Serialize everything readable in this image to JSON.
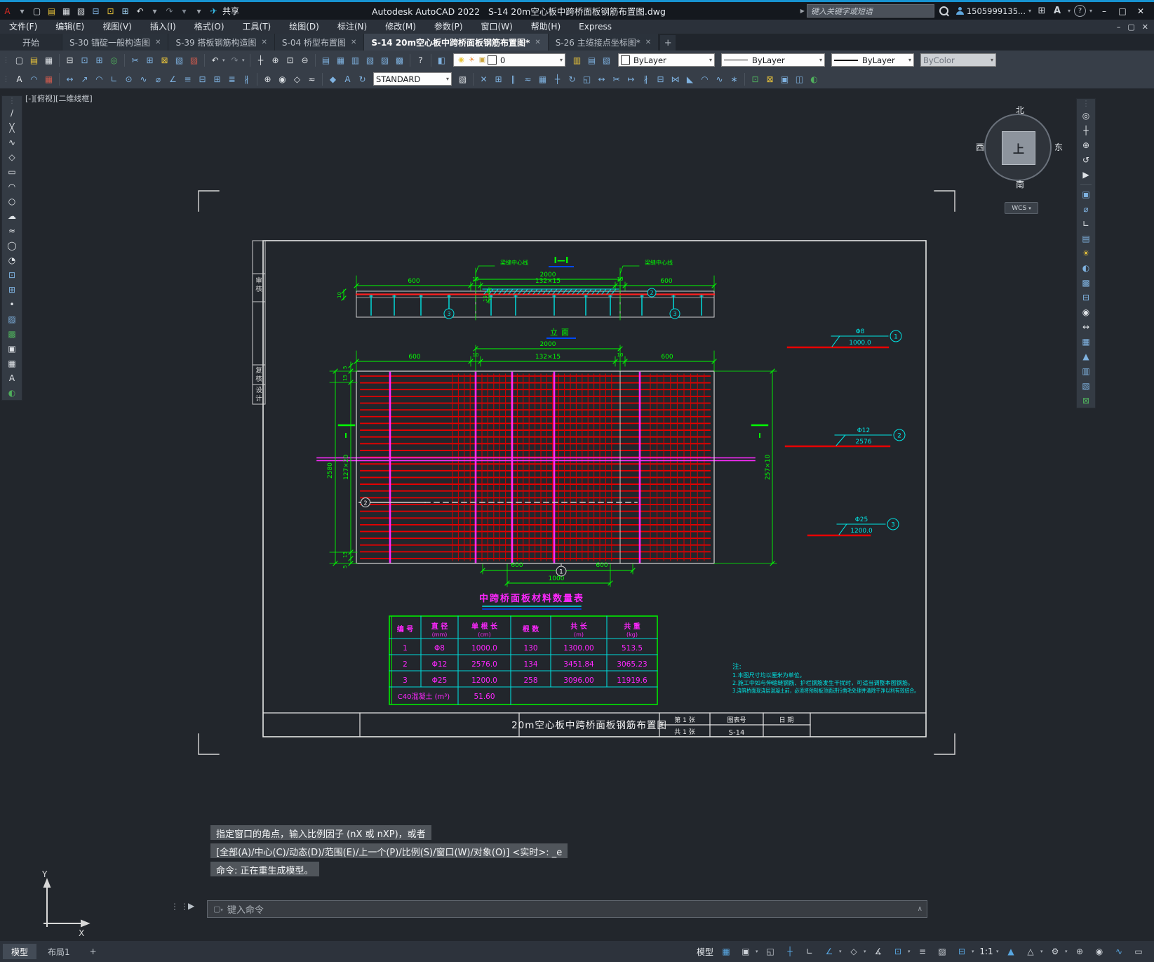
{
  "title_bar": {
    "app_title": "Autodesk AutoCAD 2022",
    "doc_title": "S-14 20m空心板中跨桥面板钢筋布置图.dwg",
    "share_label": "共享",
    "search_placeholder": "键入关键字或短语",
    "account": "1505999135...",
    "quick_icons": [
      {
        "n": "app-logo-icon",
        "g": "A",
        "c": "#d42a22"
      },
      {
        "n": "logo-caret-icon",
        "g": "▾",
        "c": "#9aa0a8"
      },
      {
        "n": "new-file-icon",
        "g": "▢",
        "c": "#dfe3e7"
      },
      {
        "n": "open-file-icon",
        "g": "▤",
        "c": "#e8c33a"
      },
      {
        "n": "save-icon",
        "g": "▦",
        "c": "#dfe3e7"
      },
      {
        "n": "save-as-icon",
        "g": "▧",
        "c": "#dfe3e7"
      },
      {
        "n": "plot-icon",
        "g": "⊟",
        "c": "#7fb2e0"
      },
      {
        "n": "sync-icon",
        "g": "⊡",
        "c": "#e8c33a"
      },
      {
        "n": "print-icon",
        "g": "⊞",
        "c": "#9fd0ef"
      },
      {
        "n": "undo-icon",
        "g": "↶",
        "c": "#dfe3e7"
      },
      {
        "n": "undo-caret-icon",
        "g": "▾",
        "c": "#9aa0a8"
      },
      {
        "n": "redo-icon",
        "g": "↷",
        "c": "#7a828c"
      },
      {
        "n": "redo-caret-icon",
        "g": "▾",
        "c": "#7a828c"
      },
      {
        "n": "more-caret-icon",
        "g": "▾",
        "c": "#9aa0a8"
      },
      {
        "n": "share-plane-icon",
        "g": "✈",
        "c": "#39c2ef"
      }
    ]
  },
  "menu_bar": {
    "items": [
      "文件(F)",
      "编辑(E)",
      "视图(V)",
      "插入(I)",
      "格式(O)",
      "工具(T)",
      "绘图(D)",
      "标注(N)",
      "修改(M)",
      "参数(P)",
      "窗口(W)",
      "帮助(H)",
      "Express"
    ]
  },
  "doc_tabs": {
    "tabs": [
      {
        "label": "开始",
        "closable": false,
        "active": false,
        "start": true
      },
      {
        "label": "S-30 锚碇一般构造图",
        "closable": true,
        "active": false
      },
      {
        "label": "S-39 搭板钢筋构造图",
        "closable": true,
        "active": false
      },
      {
        "label": "S-04 桥型布置图",
        "closable": true,
        "active": false
      },
      {
        "label": "S-14 20m空心板中跨桥面板钢筋布置图*",
        "closable": true,
        "active": true
      },
      {
        "label": "S-26 主缆接点坐标图*",
        "closable": true,
        "active": false
      }
    ],
    "new_tab": "+"
  },
  "toolbar1": {
    "icons": [
      {
        "grip": true
      },
      {
        "n": "new-icon",
        "g": "▢",
        "c": "#dfe3e7"
      },
      {
        "n": "open-icon",
        "g": "▤",
        "c": "#e8c33a"
      },
      {
        "n": "save-icon",
        "g": "▦",
        "c": "#dfe3e7"
      },
      {
        "sep": true
      },
      {
        "n": "plot-icon",
        "g": "⊟",
        "c": "#dfe3e7"
      },
      {
        "n": "preview-icon",
        "g": "⊡",
        "c": "#7fb2e0"
      },
      {
        "n": "publish-icon",
        "g": "⊞",
        "c": "#7fb2e0"
      },
      {
        "n": "transmit-icon",
        "g": "◎",
        "c": "#4fae5c"
      },
      {
        "sep": true
      },
      {
        "n": "cut-icon",
        "g": "✂",
        "c": "#7fb2e0"
      },
      {
        "n": "copy-clip-icon",
        "g": "⊞",
        "c": "#7fb2e0"
      },
      {
        "n": "paste-icon",
        "g": "⊠",
        "c": "#e8c33a"
      },
      {
        "n": "match-properties-icon",
        "g": "▧",
        "c": "#7fb2e0"
      },
      {
        "n": "block-editor-icon",
        "g": "▨",
        "c": "#cf5b4e"
      },
      {
        "sep": true
      },
      {
        "n": "undo-icon",
        "g": "↶",
        "c": "#dfe3e7"
      },
      {
        "caret": true
      },
      {
        "n": "redo-icon",
        "g": "↷",
        "c": "#7a828c"
      },
      {
        "caret": true
      },
      {
        "sep": true
      },
      {
        "n": "pan-icon",
        "g": "┼",
        "c": "#dfe3e7"
      },
      {
        "n": "zoom-realtime-icon",
        "g": "⊕",
        "c": "#dfe3e7"
      },
      {
        "n": "zoom-window-icon",
        "g": "⊡",
        "c": "#dfe3e7"
      },
      {
        "n": "zoom-previous-icon",
        "g": "⊖",
        "c": "#dfe3e7"
      },
      {
        "sep": true
      },
      {
        "n": "properties-icon",
        "g": "▤",
        "c": "#7fb2e0"
      },
      {
        "n": "designcenter-icon",
        "g": "▦",
        "c": "#7fb2e0"
      },
      {
        "n": "tool-palettes-icon",
        "g": "▥",
        "c": "#7fb2e0"
      },
      {
        "n": "sheetset-icon",
        "g": "▧",
        "c": "#7fb2e0"
      },
      {
        "n": "markup-icon",
        "g": "▨",
        "c": "#7fb2e0"
      },
      {
        "n": "quickcalc-icon",
        "g": "▩",
        "c": "#7fb2e0"
      },
      {
        "sep": true
      },
      {
        "n": "help-icon",
        "g": "?",
        "c": "#dfe3e7"
      },
      {
        "sep": true
      },
      {
        "n": "layer-states-icon",
        "g": "◧",
        "c": "#7fb2e0"
      }
    ],
    "layer_combo": {
      "bulb_icon": "◉",
      "sun_icon": "☀",
      "lock_icon": "▣",
      "swatch_icon": "□",
      "layer_name": "0"
    },
    "layer_tool_icons": [
      {
        "n": "layer-properties-icon",
        "g": "▥",
        "c": "#e8c33a"
      },
      {
        "n": "layer-prev-icon",
        "g": "▤",
        "c": "#7fb2e0"
      },
      {
        "n": "layer-isolate-icon",
        "g": "▧",
        "c": "#7fb2e0"
      }
    ],
    "color_value": "ByLayer",
    "linetype_value": "ByLayer",
    "lineweight_value": "ByLayer",
    "plotstyle_value": "ByColor"
  },
  "toolbar2": {
    "icons_left": [
      {
        "grip": true
      },
      {
        "n": "text-style-icon",
        "g": "A",
        "c": "#dfe3e7"
      },
      {
        "n": "dim-style-icon",
        "g": "◠",
        "c": "#7fb2e0"
      },
      {
        "n": "table-style-icon",
        "g": "▦",
        "c": "#cf5b4e"
      },
      {
        "sep": true
      },
      {
        "n": "dim-linear-icon",
        "g": "↔",
        "c": "#7fb2e0"
      },
      {
        "n": "dim-aligned-icon",
        "g": "↗",
        "c": "#7fb2e0"
      },
      {
        "n": "dim-arc-icon",
        "g": "◠",
        "c": "#7fb2e0"
      },
      {
        "n": "dim-ordinate-icon",
        "g": "∟",
        "c": "#7fb2e0"
      },
      {
        "n": "dim-radius-icon",
        "g": "⊙",
        "c": "#7fb2e0"
      },
      {
        "n": "dim-jogged-icon",
        "g": "∿",
        "c": "#7fb2e0"
      },
      {
        "n": "dim-diameter-icon",
        "g": "⌀",
        "c": "#7fb2e0"
      },
      {
        "n": "dim-angular-icon",
        "g": "∠",
        "c": "#7fb2e0"
      },
      {
        "n": "quick-dim-icon",
        "g": "≡",
        "c": "#7fb2e0"
      },
      {
        "n": "dim-baseline-icon",
        "g": "⊟",
        "c": "#7fb2e0"
      },
      {
        "n": "dim-continue-icon",
        "g": "⊞",
        "c": "#7fb2e0"
      },
      {
        "n": "dim-space-icon",
        "g": "≣",
        "c": "#7fb2e0"
      },
      {
        "n": "dim-break-icon",
        "g": "∦",
        "c": "#7fb2e0"
      },
      {
        "sep": true
      },
      {
        "n": "tolerance-icon",
        "g": "⊕",
        "c": "#dfe3e7"
      },
      {
        "n": "center-mark-icon",
        "g": "◉",
        "c": "#dfe3e7"
      },
      {
        "n": "inspection-icon",
        "g": "◇",
        "c": "#dfe3e7"
      },
      {
        "n": "jog-line-icon",
        "g": "≈",
        "c": "#dfe3e7"
      },
      {
        "sep": true
      },
      {
        "n": "dim-edit-icon",
        "g": "◆",
        "c": "#7fb2e0"
      },
      {
        "n": "dim-text-edit-icon",
        "g": "A",
        "c": "#7fb2e0"
      },
      {
        "n": "dim-update-icon",
        "g": "↻",
        "c": "#7fb2e0"
      }
    ],
    "style_value": "STANDARD",
    "icons_right": [
      {
        "n": "dim-style-manager-icon",
        "g": "▧",
        "c": "#dfe3e7"
      },
      {
        "sep": true
      },
      {
        "n": "erase-icon",
        "g": "✕",
        "c": "#7fb2e0"
      },
      {
        "n": "copy-icon",
        "g": "⊞",
        "c": "#7fb2e0"
      },
      {
        "n": "mirror-icon",
        "g": "∥",
        "c": "#7fb2e0"
      },
      {
        "n": "offset-icon",
        "g": "≈",
        "c": "#7fb2e0"
      },
      {
        "n": "array-icon",
        "g": "▦",
        "c": "#7fb2e0"
      },
      {
        "n": "move-icon",
        "g": "┼",
        "c": "#7fb2e0"
      },
      {
        "n": "rotate-icon",
        "g": "↻",
        "c": "#7fb2e0"
      },
      {
        "n": "scale-icon",
        "g": "◱",
        "c": "#7fb2e0"
      },
      {
        "n": "stretch-icon",
        "g": "↔",
        "c": "#7fb2e0"
      },
      {
        "n": "trim-icon",
        "g": "✂",
        "c": "#7fb2e0"
      },
      {
        "n": "extend-icon",
        "g": "↦",
        "c": "#7fb2e0"
      },
      {
        "n": "break-point-icon",
        "g": "∦",
        "c": "#7fb2e0"
      },
      {
        "n": "break-icon",
        "g": "⊟",
        "c": "#7fb2e0"
      },
      {
        "n": "join-icon",
        "g": "⋈",
        "c": "#7fb2e0"
      },
      {
        "n": "chamfer-icon",
        "g": "◣",
        "c": "#7fb2e0"
      },
      {
        "n": "fillet-icon",
        "g": "◠",
        "c": "#7fb2e0"
      },
      {
        "n": "blend-icon",
        "g": "∿",
        "c": "#7fb2e0"
      },
      {
        "n": "explode-icon",
        "g": "∗",
        "c": "#7fb2e0"
      },
      {
        "sep": true
      },
      {
        "n": "group-icon",
        "g": "⊡",
        "c": "#4fae5c"
      },
      {
        "n": "ungroup-icon",
        "g": "⊠",
        "c": "#e8c33a"
      },
      {
        "n": "group-edit-icon",
        "g": "▣",
        "c": "#7fb2e0"
      },
      {
        "n": "selection-icon",
        "g": "◫",
        "c": "#7fb2e0"
      },
      {
        "n": "purge-icon",
        "g": "◐",
        "c": "#4fae5c"
      }
    ]
  },
  "left_toolbar": {
    "icons": [
      {
        "grip": true
      },
      {
        "n": "line-icon",
        "g": "∕",
        "c": "#dfe3e7"
      },
      {
        "n": "construction-line-icon",
        "g": "╳",
        "c": "#dfe3e7"
      },
      {
        "n": "polyline-icon",
        "g": "∿",
        "c": "#dfe3e7"
      },
      {
        "n": "polygon-icon",
        "g": "◇",
        "c": "#dfe3e7"
      },
      {
        "n": "rectangle-icon",
        "g": "▭",
        "c": "#dfe3e7"
      },
      {
        "n": "arc-icon",
        "g": "◠",
        "c": "#dfe3e7"
      },
      {
        "n": "circle-icon",
        "g": "○",
        "c": "#dfe3e7"
      },
      {
        "n": "revision-cloud-icon",
        "g": "☁",
        "c": "#dfe3e7"
      },
      {
        "n": "spline-icon",
        "g": "≈",
        "c": "#dfe3e7"
      },
      {
        "n": "ellipse-icon",
        "g": "◯",
        "c": "#dfe3e7"
      },
      {
        "n": "ellipse-arc-icon",
        "g": "◔",
        "c": "#dfe3e7"
      },
      {
        "n": "insert-block-icon",
        "g": "⊡",
        "c": "#7fb2e0"
      },
      {
        "n": "create-block-icon",
        "g": "⊞",
        "c": "#7fb2e0"
      },
      {
        "n": "point-icon",
        "g": "•",
        "c": "#dfe3e7"
      },
      {
        "n": "hatch-icon",
        "g": "▨",
        "c": "#7fb2e0"
      },
      {
        "n": "gradient-icon",
        "g": "▩",
        "c": "#4fae5c"
      },
      {
        "n": "region-icon",
        "g": "▣",
        "c": "#dfe3e7"
      },
      {
        "n": "table-icon",
        "g": "▦",
        "c": "#dfe3e7"
      },
      {
        "n": "multiline-text-icon",
        "g": "A",
        "c": "#dfe3e7"
      },
      {
        "n": "point-cloud-icon",
        "g": "◐",
        "c": "#4fae5c"
      }
    ]
  },
  "right_toolbar": {
    "icons": [
      {
        "grip": true
      },
      {
        "n": "navigation-wheel-icon",
        "g": "◎",
        "c": "#dfe3e7"
      },
      {
        "n": "pan-icon",
        "g": "┼",
        "c": "#dfe3e7"
      },
      {
        "n": "zoom-extents-icon",
        "g": "⊕",
        "c": "#dfe3e7"
      },
      {
        "n": "orbit-icon",
        "g": "↺",
        "c": "#dfe3e7"
      },
      {
        "n": "showmotion-icon",
        "g": "▶",
        "c": "#dfe3e7"
      },
      {
        "sep": true
      },
      {
        "n": "draw-order-icon",
        "g": "▣",
        "c": "#7fb2e0"
      },
      {
        "n": "measure-icon",
        "g": "⌀",
        "c": "#7fb2e0"
      },
      {
        "n": "ucs-icon",
        "g": "∟",
        "c": "#dfe3e7"
      },
      {
        "n": "named-views-icon",
        "g": "▤",
        "c": "#7fb2e0"
      },
      {
        "n": "lights-icon",
        "g": "☀",
        "c": "#e8c33a"
      },
      {
        "n": "materials-icon",
        "g": "◐",
        "c": "#7fb2e0"
      },
      {
        "n": "render-icon",
        "g": "▩",
        "c": "#7fb2e0"
      },
      {
        "n": "section-plane-icon",
        "g": "⊟",
        "c": "#7fb2e0"
      },
      {
        "n": "camera-icon",
        "g": "◉",
        "c": "#dfe3e7"
      },
      {
        "n": "walk-icon",
        "g": "↔",
        "c": "#dfe3e7"
      },
      {
        "n": "sheet-icon",
        "g": "▦",
        "c": "#7fb2e0"
      },
      {
        "n": "annotate-icon",
        "g": "▲",
        "c": "#7fb2e0"
      },
      {
        "n": "layer-walk-icon",
        "g": "▥",
        "c": "#7fb2e0"
      },
      {
        "n": "properties-icon",
        "g": "▧",
        "c": "#7fb2e0"
      },
      {
        "n": "clean-icon",
        "g": "⊠",
        "c": "#4fae5c"
      }
    ]
  },
  "viewcube": {
    "north": "北",
    "south": "南",
    "west": "西",
    "east": "东",
    "top": "上",
    "wcs_label": "WCS",
    "wcs_caret": "▾"
  },
  "canvas": {
    "viewport_label": "[-][俯视][二维线框]"
  },
  "drawing": {
    "sidebar_labels": [
      "审核",
      "复核",
      "设计"
    ],
    "elevation": {
      "section_title": "I—I",
      "dim_overall": "2000",
      "dim_mid": "132×15",
      "dim_left": "600",
      "dim_right": "600",
      "gap_left": "10",
      "gap_right": "10",
      "thickness": "10",
      "hatch_h": "15",
      "joint_left": "梁缝中心线",
      "joint_right": "梁缝中心线",
      "view_label": "立面",
      "c2": "2",
      "c3": "3"
    },
    "plan": {
      "dim_overall": "2000",
      "dim_mid": "132×15",
      "dim_left": "600",
      "dim_right": "600",
      "gap_left": "10",
      "gap_right": "10",
      "left_total": "2580",
      "left_mid": "127×20",
      "t5": "5",
      "t15": "15",
      "b15": "15",
      "b5": "5",
      "right_dim": "257×10",
      "section_mark": "I",
      "bot_600l": "600",
      "bot_600r": "600",
      "bot_1000": "1000",
      "c1": "1",
      "c2": "2"
    },
    "details": [
      {
        "dia": "Φ8",
        "len": "1000.0",
        "no": "1"
      },
      {
        "dia": "Φ12",
        "len": "2576",
        "no": "2"
      },
      {
        "dia": "Φ25",
        "len": "1200.0",
        "no": "3"
      }
    ],
    "table": {
      "title": "中跨桥面板材料数量表",
      "headers": [
        {
          "l1": "编 号",
          "l2": ""
        },
        {
          "l1": "直 径",
          "l2": "(mm)"
        },
        {
          "l1": "单 根 长",
          "l2": "(cm)"
        },
        {
          "l1": "根 数",
          "l2": ""
        },
        {
          "l1": "共 长",
          "l2": "(m)"
        },
        {
          "l1": "共 重",
          "l2": "(kg)"
        }
      ],
      "rows": [
        [
          "1",
          "Φ8",
          "1000.0",
          "130",
          "1300.00",
          "513.5"
        ],
        [
          "2",
          "Φ12",
          "2576.0",
          "134",
          "3451.84",
          "3065.23"
        ],
        [
          "3",
          "Φ25",
          "1200.0",
          "258",
          "3096.00",
          "11919.6"
        ]
      ],
      "footer_label": "C40混凝土 (m³)",
      "footer_value": "51.60"
    },
    "notes": {
      "title": "注:",
      "lines": [
        "1.本图尺寸均以厘米为单位。",
        "2.施工中如与伸缩缝钢筋、护栏钢筋发生干扰时，可适当调整本图钢筋。",
        "3.浇筑桥面现浇层混凝土前，必须将预制板顶面进行凿毛处理并清除干净以利有效结合。"
      ]
    },
    "title_block": {
      "title": "20m空心板中跨桥面板钢筋布置图",
      "pages_top": "第 1 张",
      "pages_bottom": "共 1 张",
      "fig_label": "图表号",
      "fig_no": "S-14",
      "date_label": "日 期"
    }
  },
  "command": {
    "lines": [
      "指定窗口的角点，输入比例因子 (nX 或 nXP)，或者",
      "[全部(A)/中心(C)/动态(D)/范围(E)/上一个(P)/比例(S)/窗口(W)/对象(O)] <实时>: _e",
      "命令: 正在重生成模型。"
    ],
    "input_placeholder": "键入命令",
    "recent_icon": "▢",
    "recent_caret": "▾",
    "scroll_up": "∧"
  },
  "status_bar": {
    "model_tab": "模型",
    "layout_tab": "布局1",
    "new_layout": "+",
    "right": [
      {
        "n": "model-space-button",
        "t": "模型"
      },
      {
        "n": "grid-icon",
        "g": "▦",
        "c": "#58a6e0"
      },
      {
        "n": "snap-mode-icon",
        "g": "▣",
        "c": "#ccd1d7",
        "caret": true
      },
      {
        "n": "infer-constraints-icon",
        "g": "◱",
        "c": "#ccd1d7"
      },
      {
        "n": "dynamic-input-icon",
        "g": "┼",
        "c": "#58a6e0"
      },
      {
        "n": "ortho-icon",
        "g": "∟",
        "c": "#ccd1d7"
      },
      {
        "n": "polar-tracking-icon",
        "g": "∠",
        "c": "#58a6e0",
        "caret": true
      },
      {
        "n": "isodraft-icon",
        "g": "◇",
        "c": "#ccd1d7",
        "caret": true
      },
      {
        "n": "osnap-tracking-icon",
        "g": "∡",
        "c": "#ccd1d7"
      },
      {
        "n": "object-snap-icon",
        "g": "⊡",
        "c": "#58a6e0",
        "caret": true
      },
      {
        "n": "lineweight-icon",
        "g": "≡",
        "c": "#ccd1d7"
      },
      {
        "n": "transparency-icon",
        "g": "▨",
        "c": "#ccd1d7"
      },
      {
        "n": "selection-cycling-icon",
        "g": "⊟",
        "c": "#58a6e0",
        "caret": true
      },
      {
        "n": "annotation-scale-button",
        "t": "1:1",
        "caret": true
      },
      {
        "n": "annotation-visibility-icon",
        "g": "▲",
        "c": "#58a6e0"
      },
      {
        "n": "autoscale-icon",
        "g": "△",
        "c": "#ccd1d7",
        "caret": true
      },
      {
        "n": "workspace-icon",
        "g": "⚙",
        "c": "#ccd1d7",
        "caret": true
      },
      {
        "n": "annotation-monitor-icon",
        "g": "⊕",
        "c": "#ccd1d7"
      },
      {
        "n": "isolate-objects-icon",
        "g": "◉",
        "c": "#ccd1d7"
      },
      {
        "n": "graphics-performance-icon",
        "g": "∿",
        "c": "#58a6e0"
      },
      {
        "n": "clean-screen-icon",
        "g": "▭",
        "c": "#ccd1d7"
      }
    ]
  }
}
